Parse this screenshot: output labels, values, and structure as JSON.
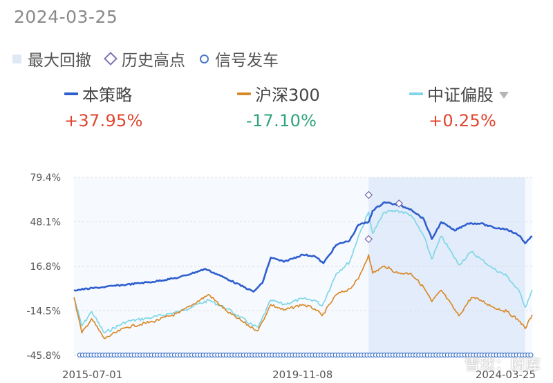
{
  "header": {
    "date": "2024-03-25"
  },
  "legend_top": [
    {
      "label": "最大回撤",
      "icon": "square-icon",
      "color": "#dfe8f7"
    },
    {
      "label": "历史高点",
      "icon": "diamond-icon",
      "color": "#7d6fb4"
    },
    {
      "label": "信号发车",
      "icon": "circle-icon",
      "color": "#4a78c8"
    }
  ],
  "series_legend": [
    {
      "name": "本策略",
      "return": "+37.95%",
      "color": "#2f5fce",
      "return_color": "#e0452e"
    },
    {
      "name": "沪深300",
      "return": "-17.10%",
      "color": "#d9892a",
      "return_color": "#2fa37a"
    },
    {
      "name": "中证偏股",
      "return": "+0.25%",
      "color": "#7fd6e6",
      "return_color": "#e0452e",
      "has_dropdown": true
    }
  ],
  "watermark": "雪球：府库",
  "chart_data": {
    "type": "line",
    "x_ticks": [
      "2015-07-01",
      "2019-11-08",
      "2024-03-25"
    ],
    "x_range": [
      "2015-07-01",
      "2024-03-25"
    ],
    "y_ticks": [
      "79.4%",
      "48.1%",
      "16.8%",
      "-14.5%",
      "-45.8%"
    ],
    "ylim": [
      -45.8,
      79.4
    ],
    "grid": "horizontal-dashed",
    "drawdown_band": {
      "start": "2021-02-10",
      "end": "2024-02-05"
    },
    "series": [
      {
        "name": "本策略",
        "color": "#2f5fce",
        "points": [
          [
            "2015-07-01",
            0
          ],
          [
            "2016-01-01",
            2
          ],
          [
            "2016-07-01",
            4
          ],
          [
            "2017-01-01",
            6
          ],
          [
            "2017-07-01",
            9
          ],
          [
            "2018-01-01",
            15
          ],
          [
            "2018-06-01",
            8
          ],
          [
            "2018-12-01",
            -1
          ],
          [
            "2019-02-01",
            5
          ],
          [
            "2019-04-01",
            23
          ],
          [
            "2019-07-01",
            20
          ],
          [
            "2019-11-08",
            25
          ],
          [
            "2020-02-01",
            24
          ],
          [
            "2020-04-01",
            19
          ],
          [
            "2020-07-01",
            32
          ],
          [
            "2020-10-01",
            35
          ],
          [
            "2020-12-01",
            46
          ],
          [
            "2021-02-10",
            48
          ],
          [
            "2021-03-10",
            56
          ],
          [
            "2021-06-01",
            62
          ],
          [
            "2021-09-01",
            60
          ],
          [
            "2021-12-01",
            57
          ],
          [
            "2022-03-01",
            50
          ],
          [
            "2022-04-26",
            36
          ],
          [
            "2022-07-01",
            48
          ],
          [
            "2022-10-01",
            42
          ],
          [
            "2023-01-01",
            47
          ],
          [
            "2023-04-01",
            47
          ],
          [
            "2023-07-01",
            44
          ],
          [
            "2023-10-01",
            43
          ],
          [
            "2024-01-01",
            38
          ],
          [
            "2024-02-05",
            33
          ],
          [
            "2024-03-25",
            38
          ]
        ]
      },
      {
        "name": "沪深300",
        "color": "#d9892a",
        "points": [
          [
            "2015-07-01",
            -5
          ],
          [
            "2015-08-25",
            -30
          ],
          [
            "2015-11-01",
            -20
          ],
          [
            "2016-01-28",
            -34
          ],
          [
            "2016-07-01",
            -26
          ],
          [
            "2017-01-01",
            -22
          ],
          [
            "2017-07-01",
            -16
          ],
          [
            "2018-01-24",
            -3
          ],
          [
            "2018-06-01",
            -15
          ],
          [
            "2018-12-01",
            -27
          ],
          [
            "2019-01-04",
            -28
          ],
          [
            "2019-04-01",
            -10
          ],
          [
            "2019-07-01",
            -14
          ],
          [
            "2019-11-08",
            -10
          ],
          [
            "2020-02-01",
            -13
          ],
          [
            "2020-03-23",
            -18
          ],
          [
            "2020-07-01",
            -3
          ],
          [
            "2020-10-01",
            1
          ],
          [
            "2020-12-01",
            8
          ],
          [
            "2021-02-10",
            25
          ],
          [
            "2021-03-10",
            12
          ],
          [
            "2021-06-01",
            17
          ],
          [
            "2021-09-01",
            12
          ],
          [
            "2021-12-01",
            12
          ],
          [
            "2022-03-01",
            2
          ],
          [
            "2022-04-26",
            -8
          ],
          [
            "2022-07-01",
            0
          ],
          [
            "2022-10-31",
            -18
          ],
          [
            "2023-01-27",
            -5
          ],
          [
            "2023-04-01",
            -7
          ],
          [
            "2023-07-01",
            -12
          ],
          [
            "2023-10-01",
            -15
          ],
          [
            "2024-01-01",
            -22
          ],
          [
            "2024-02-05",
            -27
          ],
          [
            "2024-03-25",
            -17.1
          ]
        ]
      },
      {
        "name": "中证偏股",
        "color": "#7fd6e6",
        "points": [
          [
            "2015-07-01",
            -5
          ],
          [
            "2015-08-25",
            -25
          ],
          [
            "2015-11-01",
            -15
          ],
          [
            "2016-01-28",
            -30
          ],
          [
            "2016-07-01",
            -22
          ],
          [
            "2017-01-01",
            -19
          ],
          [
            "2017-07-01",
            -15
          ],
          [
            "2018-01-24",
            -7
          ],
          [
            "2018-06-01",
            -13
          ],
          [
            "2018-12-01",
            -25
          ],
          [
            "2019-01-04",
            -26
          ],
          [
            "2019-04-01",
            -7
          ],
          [
            "2019-07-01",
            -10
          ],
          [
            "2019-11-08",
            -6
          ],
          [
            "2020-02-01",
            -7
          ],
          [
            "2020-03-23",
            -11
          ],
          [
            "2020-07-01",
            12
          ],
          [
            "2020-10-01",
            20
          ],
          [
            "2020-12-01",
            38
          ],
          [
            "2021-02-10",
            55
          ],
          [
            "2021-03-10",
            40
          ],
          [
            "2021-06-01",
            55
          ],
          [
            "2021-09-01",
            56
          ],
          [
            "2021-12-01",
            53
          ],
          [
            "2022-03-01",
            38
          ],
          [
            "2022-04-26",
            22
          ],
          [
            "2022-07-01",
            38
          ],
          [
            "2022-10-31",
            18
          ],
          [
            "2023-01-27",
            27
          ],
          [
            "2023-04-01",
            22
          ],
          [
            "2023-07-01",
            15
          ],
          [
            "2023-10-01",
            10
          ],
          [
            "2024-01-01",
            -2
          ],
          [
            "2024-02-05",
            -12
          ],
          [
            "2024-03-25",
            0.25
          ]
        ]
      }
    ],
    "peak_markers": [
      [
        "2021-02-10",
        67
      ],
      [
        "2021-02-10",
        36
      ],
      [
        "2021-09-10",
        61
      ]
    ],
    "signal_dates_per_month": true
  }
}
